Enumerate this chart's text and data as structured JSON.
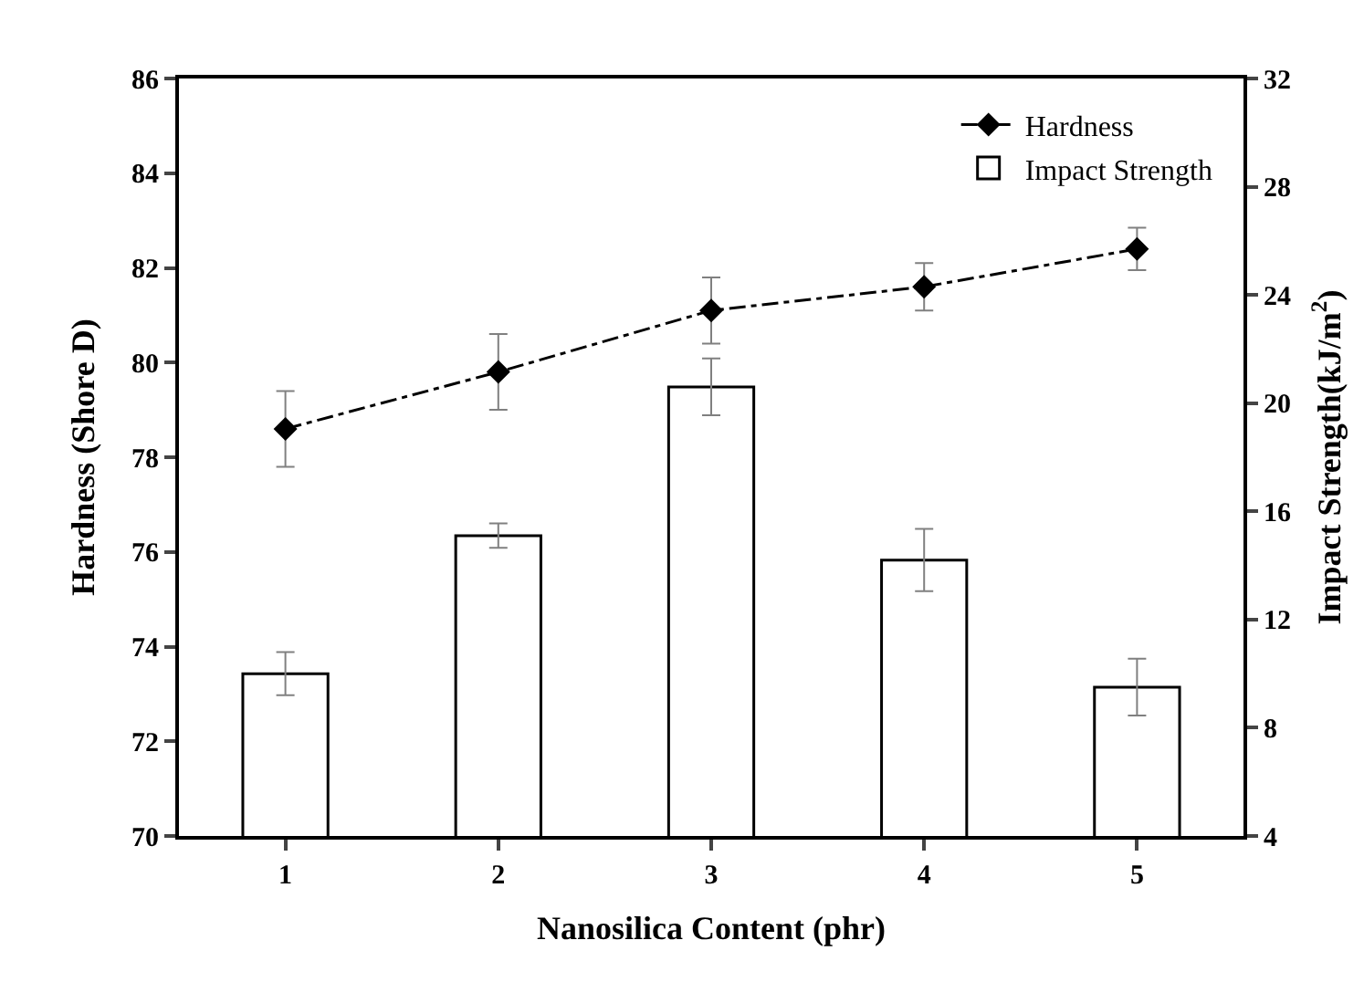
{
  "chart_data": {
    "type": "bar",
    "xlabel": "Nanosilica Content (phr)",
    "ylabel": "Hardness (Shore D)",
    "y2label": "Impact Strength(kJ/m$^{2}$)",
    "categories": [
      "1",
      "2",
      "3",
      "4",
      "5"
    ],
    "series": [
      {
        "name": "Hardness",
        "type": "line",
        "color": "#000000",
        "marker": "diamond",
        "line_style": "dashdot",
        "values": [
          78.6,
          79.8,
          81.1,
          81.6,
          82.4
        ],
        "errors": [
          0.8,
          0.8,
          0.7,
          0.5,
          0.45
        ]
      },
      {
        "name": "Impact Strength",
        "axis": "y2",
        "color": "#ffffff",
        "values": [
          10.0,
          15.1,
          20.6,
          14.2,
          9.5
        ],
        "errors": [
          0.8,
          0.45,
          1.05,
          1.15,
          1.05
        ]
      }
    ],
    "ylim": [
      70,
      86
    ],
    "yticks": [
      70,
      72,
      74,
      76,
      78,
      80,
      82,
      84,
      86
    ],
    "y2lim": [
      4,
      32
    ],
    "y2ticks": [
      4,
      8,
      12,
      16,
      20,
      24,
      28,
      32
    ],
    "legend": "top right"
  }
}
